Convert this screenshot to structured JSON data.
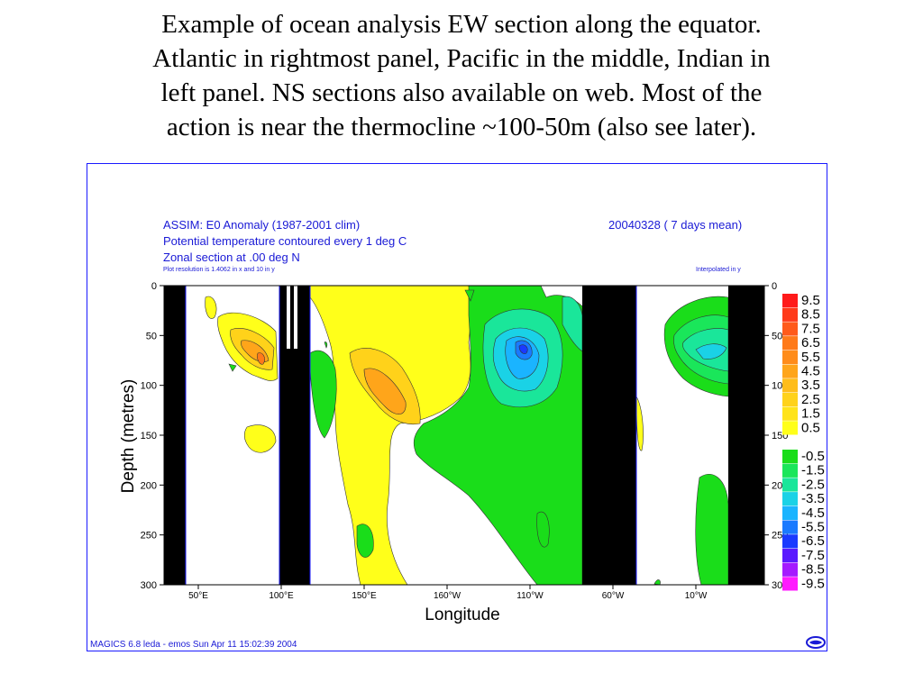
{
  "slide": {
    "title_lines": [
      "Example of ocean analysis EW section along the equator.",
      "Atlantic in rightmost panel, Pacific in the middle, Indian in",
      "left panel.  NS sections also available on web.  Most of the",
      "action is near the thermocline ~100-50m (also see later)."
    ]
  },
  "plot_header": {
    "line1": "ASSIM: E0 Anomaly (1987-2001 clim)",
    "line2": "Potential temperature contoured every 1 deg C",
    "line3": "Zonal section at  .00 deg N",
    "line4": "Plot resolution is 1.4062 in x and 10 in y",
    "date": "20040328 ( 7 days mean)",
    "interp": "Interpolated in y"
  },
  "footer": "MAGICS 6.8 leda - emos Sun Apr 11 15:02:39 2004",
  "colors": {
    "text_blue": "#1a1ad6",
    "frame_blue": "#1a1aff",
    "land": "#000000"
  },
  "chart_data": {
    "type": "heatmap",
    "title": "ASSIM: E0 Anomaly (1987-2001 clim)",
    "xlabel": "Longitude",
    "ylabel": "Depth (metres)",
    "x_ticks": [
      "50°E",
      "100°E",
      "150°E",
      "160°W",
      "110°W",
      "60°W",
      "10°W"
    ],
    "y_ticks": [
      "0",
      "50",
      "100",
      "150",
      "200",
      "250",
      "300"
    ],
    "right_y_ticks": [
      "0",
      "50",
      "100",
      "150",
      "200",
      "250",
      "300"
    ],
    "ylim": [
      0,
      300
    ],
    "legend": [
      {
        "label": "9.5",
        "color": "#ff1a1a"
      },
      {
        "label": "8.5",
        "color": "#ff3a1a"
      },
      {
        "label": "7.5",
        "color": "#ff5a1a"
      },
      {
        "label": "6.5",
        "color": "#ff7a1a"
      },
      {
        "label": "5.5",
        "color": "#ff8c1a"
      },
      {
        "label": "4.5",
        "color": "#ffa51a"
      },
      {
        "label": "3.5",
        "color": "#ffbd1a"
      },
      {
        "label": "2.5",
        "color": "#ffd21a"
      },
      {
        "label": "1.5",
        "color": "#ffe31a"
      },
      {
        "label": "0.5",
        "color": "#ffff1a"
      },
      {
        "label": "-0.5",
        "color": "#1add1a"
      },
      {
        "label": "-1.5",
        "color": "#1ae65a"
      },
      {
        "label": "-2.5",
        "color": "#1ae69a"
      },
      {
        "label": "-3.5",
        "color": "#1ad2e6"
      },
      {
        "label": "-4.5",
        "color": "#1ab4ff"
      },
      {
        "label": "-5.5",
        "color": "#1a7aff"
      },
      {
        "label": "-6.5",
        "color": "#1a3aff"
      },
      {
        "label": "-7.5",
        "color": "#5a1aff"
      },
      {
        "label": "-8.5",
        "color": "#a51aff"
      },
      {
        "label": "-9.5",
        "color": "#ff1aff"
      }
    ]
  }
}
